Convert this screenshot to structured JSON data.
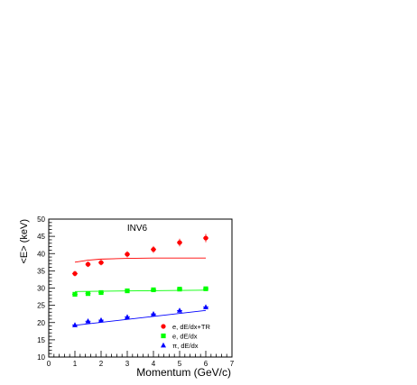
{
  "chart_data": {
    "type": "scatter",
    "title": "INV6",
    "xlabel": "Momentum (GeV/c)",
    "ylabel": "<E> (keV)",
    "xlim": [
      0,
      7
    ],
    "ylim": [
      10,
      50
    ],
    "x_ticks": [
      0,
      1,
      2,
      3,
      4,
      5,
      6,
      7
    ],
    "y_ticks": [
      10,
      15,
      20,
      25,
      30,
      35,
      40,
      45,
      50
    ],
    "grid": false,
    "legend_position": "bottom-right",
    "series": [
      {
        "name": "e, dE/dx+TR",
        "marker": "circle",
        "color": "#ff0000",
        "x": [
          1,
          1.5,
          2,
          3,
          4,
          5,
          6
        ],
        "y": [
          34.2,
          36.9,
          37.4,
          39.8,
          41.2,
          43.2,
          44.5
        ],
        "yerr": [
          0.8,
          0.8,
          0.8,
          0.9,
          1.0,
          1.1,
          1.2
        ],
        "fit_x": [
          1,
          1.5,
          2,
          3,
          4,
          5,
          6
        ],
        "fit_y": [
          37.5,
          38.1,
          38.4,
          38.6,
          38.7,
          38.7,
          38.7
        ]
      },
      {
        "name": "e, dE/dx",
        "marker": "square",
        "color": "#00ff00",
        "x": [
          1,
          1.5,
          2,
          3,
          4,
          5,
          6
        ],
        "y": [
          28.2,
          28.4,
          28.7,
          29.2,
          29.5,
          29.7,
          29.8
        ],
        "yerr": [
          0.5,
          0.5,
          0.5,
          0.5,
          0.5,
          0.5,
          0.6
        ],
        "fit_x": [
          1,
          6
        ],
        "fit_y": [
          29.0,
          29.4
        ]
      },
      {
        "name": "π, dE/dx",
        "marker": "triangle",
        "color": "#0000ff",
        "x": [
          1,
          1.5,
          2,
          3,
          4,
          5,
          6
        ],
        "y": [
          19.3,
          20.4,
          20.7,
          21.6,
          22.5,
          23.5,
          24.5
        ],
        "yerr": [
          0.3,
          0.3,
          0.3,
          0.3,
          0.3,
          0.3,
          0.4
        ],
        "fit_x": [
          1,
          6
        ],
        "fit_y": [
          19.2,
          23.5
        ]
      }
    ]
  }
}
